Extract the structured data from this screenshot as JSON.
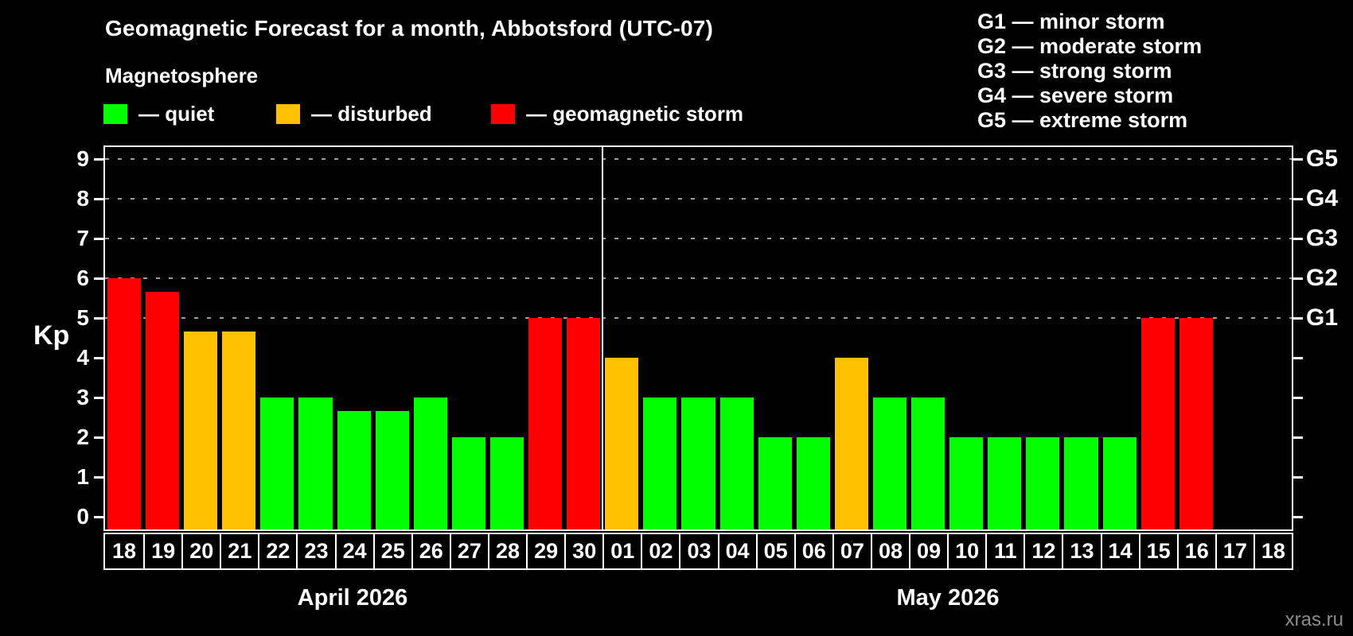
{
  "watermark": "xras.ru",
  "chart_data": {
    "type": "bar",
    "title": "Geomagnetic Forecast for a month, Abbotsford (UTC-07)",
    "subtitle": "Magnetosphere",
    "ylabel": "Kp",
    "ylim": [
      0,
      9
    ],
    "yticks": [
      0,
      1,
      2,
      3,
      4,
      5,
      6,
      7,
      8,
      9
    ],
    "gridlines_at": [
      5,
      6,
      7,
      8,
      9
    ],
    "grid": "dashed horizontal at storm levels only",
    "legend_position": "top-left row",
    "legend": [
      {
        "status": "quiet",
        "label": "— quiet"
      },
      {
        "status": "disturbed",
        "label": "— disturbed"
      },
      {
        "status": "storm",
        "label": "— geomagnetic storm"
      }
    ],
    "g_scale_legend": [
      "G1 — minor storm",
      "G2 — moderate storm",
      "G3 — strong storm",
      "G4 — severe storm",
      "G5 — extreme storm"
    ],
    "right_scale": [
      {
        "kp": 5,
        "label": "G1"
      },
      {
        "kp": 6,
        "label": "G2"
      },
      {
        "kp": 7,
        "label": "G3"
      },
      {
        "kp": 8,
        "label": "G4"
      },
      {
        "kp": 9,
        "label": "G5"
      }
    ],
    "status_colors": {
      "quiet": "#00ff00",
      "disturbed": "#ffc000",
      "storm": "#ff0000"
    },
    "axis_color": "#ffffff",
    "background_color": "#000000",
    "sections": [
      {
        "month": "April 2026",
        "days": [
          {
            "day": "18",
            "kp": 6,
            "status": "storm"
          },
          {
            "day": "19",
            "kp": 5.67,
            "status": "storm"
          },
          {
            "day": "20",
            "kp": 4.67,
            "status": "disturbed"
          },
          {
            "day": "21",
            "kp": 4.67,
            "status": "disturbed"
          },
          {
            "day": "22",
            "kp": 3,
            "status": "quiet"
          },
          {
            "day": "23",
            "kp": 3,
            "status": "quiet"
          },
          {
            "day": "24",
            "kp": 2.67,
            "status": "quiet"
          },
          {
            "day": "25",
            "kp": 2.67,
            "status": "quiet"
          },
          {
            "day": "26",
            "kp": 3,
            "status": "quiet"
          },
          {
            "day": "27",
            "kp": 2,
            "status": "quiet"
          },
          {
            "day": "28",
            "kp": 2,
            "status": "quiet"
          },
          {
            "day": "29",
            "kp": 5,
            "status": "storm"
          },
          {
            "day": "30",
            "kp": 5,
            "status": "storm"
          }
        ]
      },
      {
        "month": "May 2026",
        "days": [
          {
            "day": "01",
            "kp": 4,
            "status": "disturbed"
          },
          {
            "day": "02",
            "kp": 3,
            "status": "quiet"
          },
          {
            "day": "03",
            "kp": 3,
            "status": "quiet"
          },
          {
            "day": "04",
            "kp": 3,
            "status": "quiet"
          },
          {
            "day": "05",
            "kp": 2,
            "status": "quiet"
          },
          {
            "day": "06",
            "kp": 2,
            "status": "quiet"
          },
          {
            "day": "07",
            "kp": 4,
            "status": "disturbed"
          },
          {
            "day": "08",
            "kp": 3,
            "status": "quiet"
          },
          {
            "day": "09",
            "kp": 3,
            "status": "quiet"
          },
          {
            "day": "10",
            "kp": 2,
            "status": "quiet"
          },
          {
            "day": "11",
            "kp": 2,
            "status": "quiet"
          },
          {
            "day": "12",
            "kp": 2,
            "status": "quiet"
          },
          {
            "day": "13",
            "kp": 2,
            "status": "quiet"
          },
          {
            "day": "14",
            "kp": 2,
            "status": "quiet"
          },
          {
            "day": "15",
            "kp": 5,
            "status": "storm"
          },
          {
            "day": "16",
            "kp": 5,
            "status": "storm"
          },
          {
            "day": "17",
            "kp": null,
            "status": null
          },
          {
            "day": "18",
            "kp": null,
            "status": null
          }
        ]
      }
    ]
  }
}
